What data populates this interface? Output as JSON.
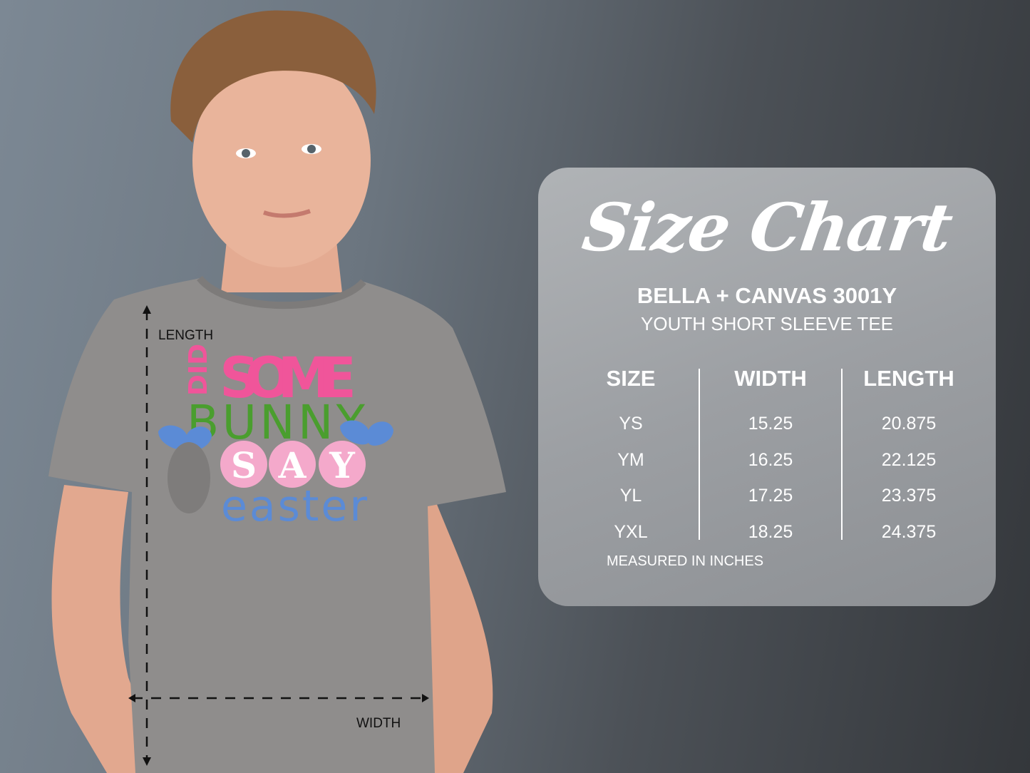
{
  "photo": {
    "shirt_design": [
      "DID",
      "SOME",
      "BUNNY",
      "S",
      "A",
      "Y",
      "easter"
    ],
    "length_label": "LENGTH",
    "width_label": "WIDTH"
  },
  "size_chart": {
    "title": "Size Chart",
    "brand": "BELLA + CANVAS 3001Y",
    "product": "YOUTH SHORT SLEEVE TEE",
    "columns": [
      "SIZE",
      "WIDTH",
      "LENGTH"
    ],
    "rows": [
      [
        "YS",
        "15.25",
        "20.875"
      ],
      [
        "YM",
        "16.25",
        "22.125"
      ],
      [
        "YL",
        "17.25",
        "23.375"
      ],
      [
        "YXL",
        "18.25",
        "24.375"
      ]
    ],
    "note": "MEASURED IN INCHES"
  },
  "colors": {
    "pink": "#f0559a",
    "green": "#4a9e2e",
    "blue": "#5b8bd6",
    "light_pink": "#f4a9cb",
    "shirt": "#8f8d8c"
  }
}
